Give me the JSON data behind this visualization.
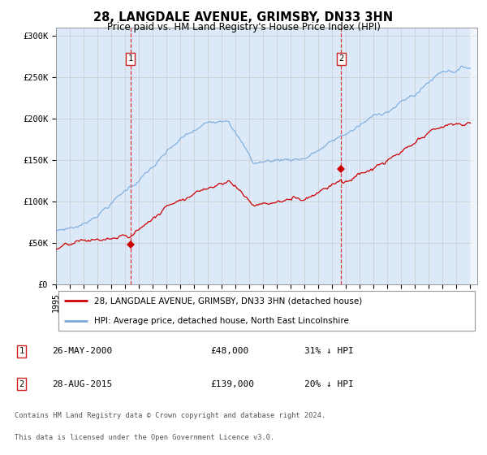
{
  "title": "28, LANGDALE AVENUE, GRIMSBY, DN33 3HN",
  "subtitle": "Price paid vs. HM Land Registry's House Price Index (HPI)",
  "background_color": "#ffffff",
  "plot_bg_color": "#dce9f8",
  "red_line_color": "#cc0000",
  "blue_line_color": "#7aaadd",
  "transaction1": {
    "date": 2000.38,
    "price": 48000,
    "label": "1"
  },
  "transaction2": {
    "date": 2015.65,
    "price": 139000,
    "label": "2"
  },
  "legend_red": "28, LANGDALE AVENUE, GRIMSBY, DN33 3HN (detached house)",
  "legend_blue": "HPI: Average price, detached house, North East Lincolnshire",
  "footnote1": "Contains HM Land Registry data © Crown copyright and database right 2024.",
  "footnote2": "This data is licensed under the Open Government Licence v3.0.",
  "ylim": [
    0,
    310000
  ],
  "xlim": [
    1995.0,
    2025.5
  ],
  "yticks": [
    0,
    50000,
    100000,
    150000,
    200000,
    250000,
    300000
  ],
  "ytick_labels": [
    "£0",
    "£50K",
    "£100K",
    "£150K",
    "£200K",
    "£250K",
    "£300K"
  ],
  "xticks": [
    1995,
    1996,
    1997,
    1998,
    1999,
    2000,
    2001,
    2002,
    2003,
    2004,
    2005,
    2006,
    2007,
    2008,
    2009,
    2010,
    2011,
    2012,
    2013,
    2014,
    2015,
    2016,
    2017,
    2018,
    2019,
    2020,
    2021,
    2022,
    2023,
    2024,
    2025
  ]
}
